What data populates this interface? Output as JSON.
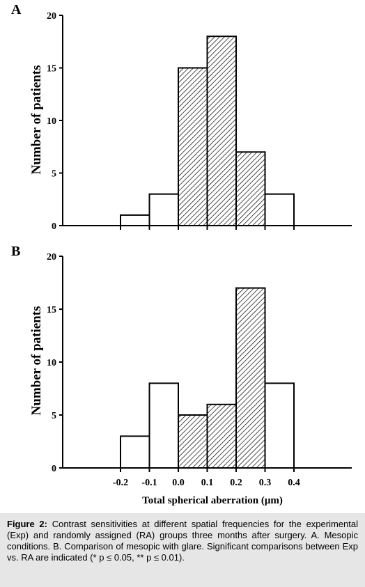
{
  "chart_data": [
    {
      "type": "bar",
      "panel_label": "A",
      "bins": [
        [
          -0.2,
          -0.1
        ],
        [
          -0.1,
          0.0
        ],
        [
          0.0,
          0.1
        ],
        [
          0.1,
          0.2
        ],
        [
          0.2,
          0.3
        ],
        [
          0.3,
          0.4
        ]
      ],
      "values": [
        1,
        3,
        15,
        18,
        7,
        3
      ],
      "hatched": [
        false,
        false,
        true,
        true,
        true,
        false
      ],
      "ylabel": "Number of patients",
      "ylim": [
        0,
        20
      ],
      "yticks": [
        "0",
        "5",
        "10",
        "15",
        "20"
      ],
      "xlim": [
        -0.4,
        0.6
      ],
      "xticks": [
        -0.2,
        -0.1,
        0.0,
        0.1,
        0.2,
        0.3,
        0.4
      ],
      "grid": false
    },
    {
      "type": "bar",
      "panel_label": "B",
      "bins": [
        [
          -0.2,
          -0.1
        ],
        [
          -0.1,
          0.0
        ],
        [
          0.0,
          0.1
        ],
        [
          0.1,
          0.2
        ],
        [
          0.2,
          0.3
        ],
        [
          0.3,
          0.4
        ]
      ],
      "values": [
        3,
        8,
        5,
        6,
        17,
        8
      ],
      "hatched": [
        false,
        false,
        true,
        true,
        true,
        false
      ],
      "ylabel": "Number of patients",
      "ylim": [
        0,
        20
      ],
      "yticks": [
        "0",
        "5",
        "10",
        "15",
        "20"
      ],
      "xlim": [
        -0.4,
        0.6
      ],
      "xticks": [
        -0.2,
        -0.1,
        0.0,
        0.1,
        0.2,
        0.3,
        0.4
      ],
      "xtick_labels": [
        "-0.2",
        "-0.1",
        "0.0",
        "0.1",
        "0.2",
        "0.3",
        "0.4"
      ],
      "xlabel": "Total spherical aberration (μm)",
      "grid": false
    }
  ],
  "caption": {
    "label": "Figure 2:",
    "text": " Contrast sensitivities at different spatial frequencies for the experimental (Exp) and randomly assigned (RA) groups three months after surgery. A. Mesopic conditions. B. Comparison of mesopic with glare. Significant comparisons between Exp vs. RA are indicated (* p ≤ 0.05, ** p ≤ 0.01)."
  },
  "colors": {
    "bar_fill": "#ffffff",
    "hatch": "#000000",
    "axis": "#000000",
    "caption_bg": "#e6e6e6"
  }
}
